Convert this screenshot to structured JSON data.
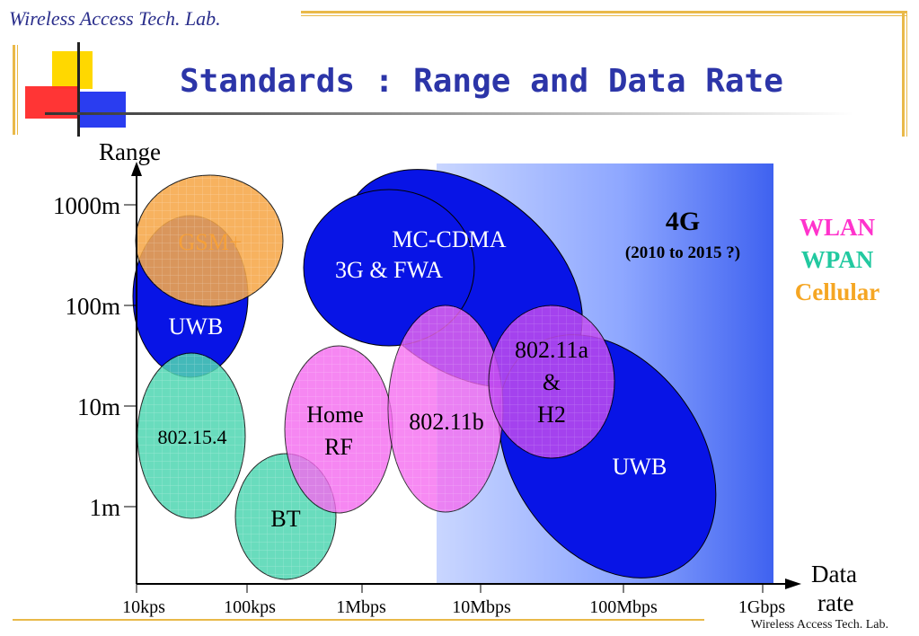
{
  "header": {
    "lab_name": "Wireless Access Tech. Lab.",
    "title": "Standards : Range and Data Rate"
  },
  "footer": {
    "lab_name": "Wireless Access Tech. Lab."
  },
  "chart_data": {
    "type": "diagram",
    "ylabel": "Range",
    "xlabel_line1": "Data",
    "xlabel_line2": "rate",
    "y_ticks": [
      "1000m",
      "100m",
      "10m",
      "1m"
    ],
    "x_ticks": [
      "10kps",
      "100kps",
      "1Mbps",
      "10Mbps",
      "100Mbps",
      "1Gbps"
    ],
    "region_4g": {
      "label": "4G",
      "sublabel": "(2010 to 2015 ?)"
    },
    "regions": [
      {
        "label": "MC-CDMA",
        "category": "Cellular"
      },
      {
        "label": "3G & FWA",
        "category": "Cellular"
      },
      {
        "label": "GSM+",
        "category": "Cellular"
      },
      {
        "label": "UWB",
        "category": "WPAN"
      },
      {
        "label": "UWB",
        "category": "WPAN"
      },
      {
        "label": "802.15.4",
        "category": "WPAN"
      },
      {
        "label": "BT",
        "category": "WPAN"
      },
      {
        "label": "Home RF",
        "category": "WLAN"
      },
      {
        "label": "802.11b",
        "category": "WLAN"
      },
      {
        "label": "802.11a & H2",
        "category": "WLAN"
      }
    ],
    "legend": [
      {
        "label": "WLAN",
        "color": "#ff33cc"
      },
      {
        "label": "WPAN",
        "color": "#22c9a0"
      },
      {
        "label": "Cellular",
        "color": "#f5a623"
      }
    ]
  }
}
